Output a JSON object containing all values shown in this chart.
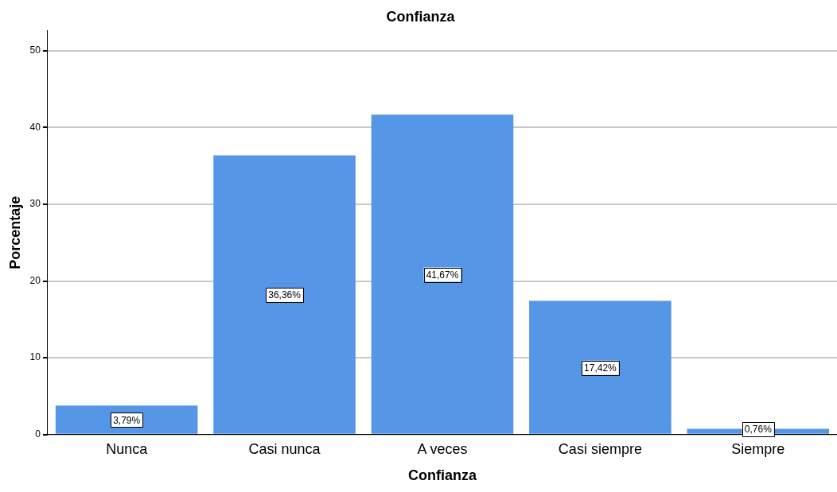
{
  "chart_data": {
    "type": "bar",
    "title": "Confianza",
    "xlabel": "Confianza",
    "ylabel": "Porcentaje",
    "categories": [
      "Nunca",
      "Casi nunca",
      "A veces",
      "Casi siempre",
      "Siempre"
    ],
    "values": [
      3.79,
      36.36,
      41.67,
      17.42,
      0.76
    ],
    "value_labels": [
      "3,79%",
      "36,36%",
      "41,67%",
      "17,42%",
      "0,76%"
    ],
    "color": "#5596e6",
    "ylim": [
      0,
      52.6
    ],
    "yticks": [
      0,
      10,
      20,
      30,
      40,
      50
    ],
    "grid": "y",
    "legend": false
  }
}
